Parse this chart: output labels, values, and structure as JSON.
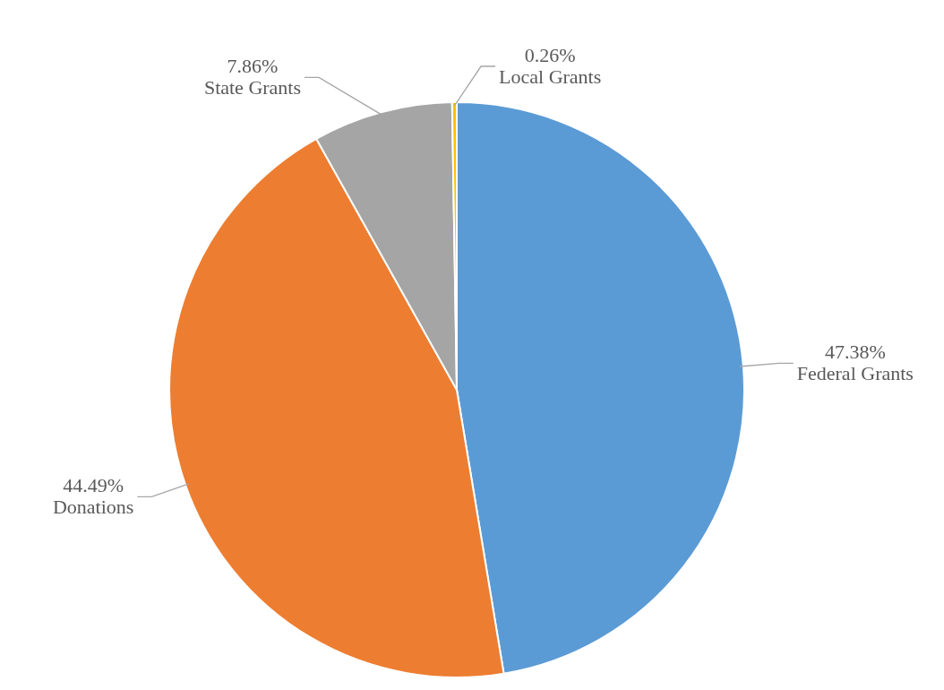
{
  "chart_data": {
    "type": "pie",
    "categories": [
      "Federal Grants",
      "Donations",
      "State Grants",
      "Local Grants"
    ],
    "values": [
      47.38,
      44.49,
      7.86,
      0.26
    ],
    "colors": [
      "#5b9bd5",
      "#ed7d31",
      "#a5a5a5",
      "#ffc000"
    ],
    "value_labels": [
      "47.38%",
      "44.49%",
      "7.86%",
      "0.26%"
    ],
    "legend": false
  }
}
